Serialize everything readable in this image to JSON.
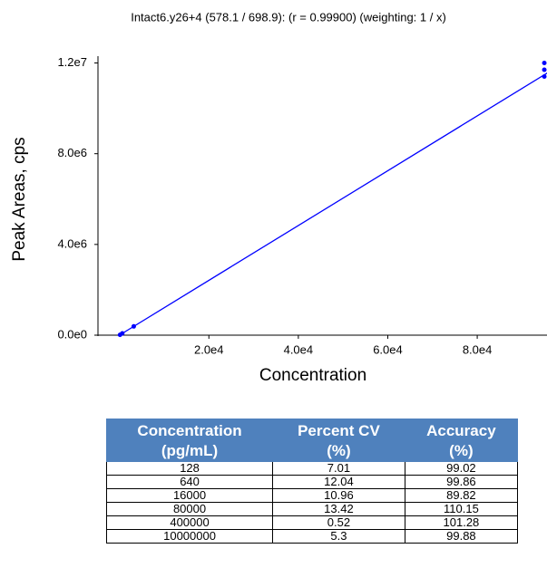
{
  "chart_data": {
    "type": "line",
    "title": "Intact6.y26+4 (578.1 / 698.9):  (r = 0.99900)  (weighting: 1 / x)",
    "x_label": "Concentration",
    "y_label": "Peak Areas, cps",
    "xlim": [
      -4800,
      95600
    ],
    "ylim": [
      0,
      12300000
    ],
    "xticks": [
      {
        "value": 20000,
        "label": "2.0e4"
      },
      {
        "value": 40000,
        "label": "4.0e4"
      },
      {
        "value": 60000,
        "label": "6.0e4"
      },
      {
        "value": 80000,
        "label": "8.0e4"
      }
    ],
    "yticks": [
      {
        "value": 0,
        "label": "0.0e0"
      },
      {
        "value": 4000000,
        "label": "4.0e6"
      },
      {
        "value": 8000000,
        "label": "8.0e6"
      },
      {
        "value": 12000000,
        "label": "1.2e7"
      }
    ],
    "series": [
      {
        "type": "line",
        "color": "#0000ff",
        "x": [
          0,
          96000
        ],
        "values": [
          0,
          11600000
        ]
      },
      {
        "type": "scatter",
        "color": "#0000ff",
        "x": [
          128,
          640,
          3200,
          95000,
          95000,
          95000
        ],
        "values": [
          15500,
          77400,
          387000,
          12000000,
          11700000,
          11400000
        ]
      }
    ]
  },
  "table": {
    "headers": [
      [
        "Concentration",
        "(pg/mL)"
      ],
      [
        "Percent CV",
        "(%)"
      ],
      [
        "Accuracy",
        "(%)"
      ]
    ],
    "rows": [
      [
        "128",
        "7.01",
        "99.02"
      ],
      [
        "640",
        "12.04",
        "99.86"
      ],
      [
        "16000",
        "10.96",
        "89.82"
      ],
      [
        "80000",
        "13.42",
        "110.15"
      ],
      [
        "400000",
        "0.52",
        "101.28"
      ],
      [
        "10000000",
        "5.3",
        "99.88"
      ]
    ]
  }
}
